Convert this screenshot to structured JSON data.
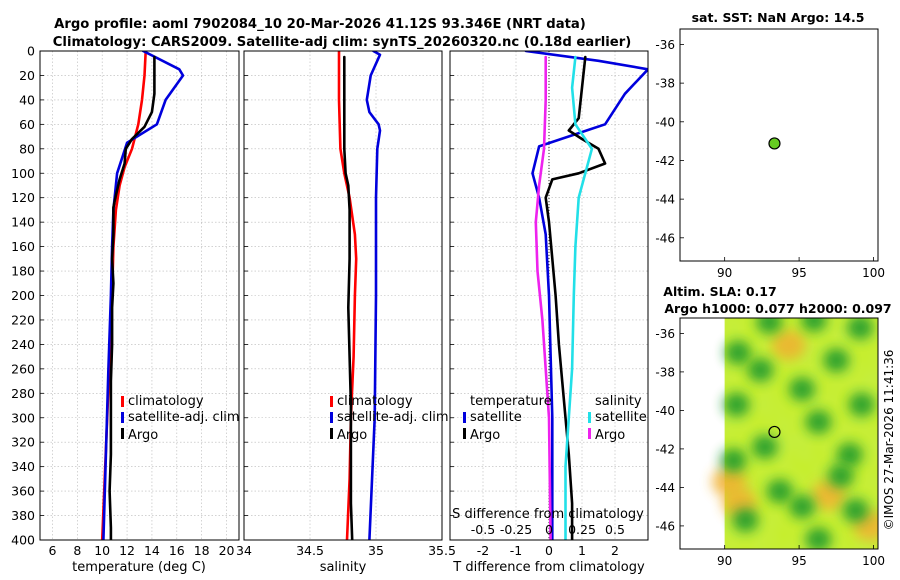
{
  "figure": {
    "title_line1": "Argo profile: aoml 7902084_10 20-Mar-2026 41.12S 93.346E (NRT data)",
    "title_line2": "Climatology: CARS2009. Satellite-adj clim: synTS_20260320.nc (0.18d earlier)",
    "footer": "©IMOS 27-Mar-2026 11:41:36"
  },
  "colors": {
    "climatology": "#ff0000",
    "satellite": "#0000dd",
    "argo": "#000000",
    "salinity_satellite": "#22e0e8",
    "salinity_argo": "#ee22ee",
    "map_marker": "#66cc22"
  },
  "chart_data": [
    {
      "id": "temperature",
      "type": "line",
      "xlabel": "temperature (deg C)",
      "ylabel": "",
      "xlim": [
        5,
        21
      ],
      "ylim": [
        400,
        0
      ],
      "xticks": [
        "6",
        "8",
        "10",
        "12",
        "14",
        "16",
        "18",
        "20"
      ],
      "xtick_values": [
        6,
        8,
        10,
        12,
        14,
        16,
        18,
        20
      ],
      "yticks": [
        "0",
        "20",
        "40",
        "60",
        "80",
        "100",
        "120",
        "140",
        "160",
        "180",
        "200",
        "220",
        "240",
        "260",
        "280",
        "300",
        "320",
        "340",
        "360",
        "380",
        "400"
      ],
      "ytick_values": [
        0,
        20,
        40,
        60,
        80,
        100,
        120,
        140,
        160,
        180,
        200,
        220,
        240,
        260,
        280,
        300,
        320,
        340,
        360,
        380,
        400
      ],
      "grid": true,
      "legend": [
        "climatology",
        "satellite-adj. clim",
        "Argo"
      ],
      "series": [
        {
          "name": "climatology",
          "color": "#ff0000",
          "points": [
            [
              13.5,
              0
            ],
            [
              13.4,
              20
            ],
            [
              13.2,
              40
            ],
            [
              12.9,
              60
            ],
            [
              12.4,
              80
            ],
            [
              11.8,
              95
            ],
            [
              11.4,
              110
            ],
            [
              11.1,
              130
            ],
            [
              10.9,
              160
            ],
            [
              10.8,
              200
            ],
            [
              10.6,
              250
            ],
            [
              10.4,
              300
            ],
            [
              10.2,
              350
            ],
            [
              10.0,
              400
            ]
          ]
        },
        {
          "name": "satellite-adj. clim",
          "color": "#0000dd",
          "points": [
            [
              13.3,
              0
            ],
            [
              16.2,
              15
            ],
            [
              16.5,
              20
            ],
            [
              15.1,
              40
            ],
            [
              14.4,
              60
            ],
            [
              12.0,
              75
            ],
            [
              11.2,
              100
            ],
            [
              10.9,
              130
            ],
            [
              10.8,
              160
            ],
            [
              10.7,
              200
            ],
            [
              10.5,
              260
            ],
            [
              10.3,
              330
            ],
            [
              10.1,
              400
            ]
          ]
        },
        {
          "name": "Argo",
          "color": "#000000",
          "points": [
            [
              14.2,
              5
            ],
            [
              14.2,
              35
            ],
            [
              14.0,
              50
            ],
            [
              13.4,
              62
            ],
            [
              12.4,
              72
            ],
            [
              11.9,
              80
            ],
            [
              11.8,
              92
            ],
            [
              11.4,
              105
            ],
            [
              11.1,
              118
            ],
            [
              10.9,
              128
            ],
            [
              10.9,
              150
            ],
            [
              10.8,
              170
            ],
            [
              10.9,
              190
            ],
            [
              10.8,
              210
            ],
            [
              10.8,
              240
            ],
            [
              10.7,
              270
            ],
            [
              10.7,
              300
            ],
            [
              10.7,
              330
            ],
            [
              10.6,
              360
            ],
            [
              10.7,
              390
            ],
            [
              10.7,
              400
            ]
          ]
        }
      ]
    },
    {
      "id": "salinity",
      "type": "line",
      "xlabel": "salinity",
      "xlim": [
        34,
        35.5
      ],
      "ylim": [
        400,
        0
      ],
      "xticks": [
        "34",
        "34.5",
        "35",
        "35.5"
      ],
      "xtick_values": [
        34,
        34.5,
        35,
        35.5
      ],
      "grid": true,
      "legend": [
        "climatology",
        "satellite-adj. clim",
        "Argo"
      ],
      "series": [
        {
          "name": "climatology",
          "color": "#ff0000",
          "points": [
            [
              34.72,
              0
            ],
            [
              34.72,
              40
            ],
            [
              34.73,
              80
            ],
            [
              34.76,
              100
            ],
            [
              34.8,
              120
            ],
            [
              34.84,
              150
            ],
            [
              34.85,
              170
            ],
            [
              34.84,
              200
            ],
            [
              34.83,
              250
            ],
            [
              34.81,
              300
            ],
            [
              34.8,
              350
            ],
            [
              34.78,
              400
            ]
          ]
        },
        {
          "name": "satellite-adj. clim",
          "color": "#0000dd",
          "points": [
            [
              34.98,
              0
            ],
            [
              35.03,
              3
            ],
            [
              34.96,
              20
            ],
            [
              34.93,
              40
            ],
            [
              34.95,
              50
            ],
            [
              35.02,
              60
            ],
            [
              35.03,
              65
            ],
            [
              35.01,
              80
            ],
            [
              35.0,
              120
            ],
            [
              35.0,
              200
            ],
            [
              34.99,
              300
            ],
            [
              34.95,
              400
            ]
          ]
        },
        {
          "name": "Argo",
          "color": "#000000",
          "points": [
            [
              34.76,
              5
            ],
            [
              34.76,
              60
            ],
            [
              34.76,
              80
            ],
            [
              34.77,
              100
            ],
            [
              34.79,
              110
            ],
            [
              34.8,
              130
            ],
            [
              34.8,
              170
            ],
            [
              34.79,
              210
            ],
            [
              34.8,
              250
            ],
            [
              34.81,
              290
            ],
            [
              34.81,
              330
            ],
            [
              34.81,
              370
            ],
            [
              34.82,
              400
            ]
          ]
        }
      ]
    },
    {
      "id": "difference",
      "type": "line",
      "xlabel": "T difference from climatology",
      "xlabel_top": "S difference from climatology",
      "xlim": [
        -3,
        3
      ],
      "ylim": [
        400,
        0
      ],
      "xticks": [
        "-2",
        "-1",
        "0",
        "1",
        "2"
      ],
      "xtick_values": [
        -2,
        -1,
        0,
        1,
        2
      ],
      "s_ticks": [
        "-0.5",
        "-0.25",
        "0",
        "0.25",
        "0.5"
      ],
      "s_tick_values": [
        -0.5,
        -0.25,
        0,
        0.25,
        0.5
      ],
      "grid": true,
      "legend_titles": [
        "temperature",
        "salinity"
      ],
      "legend": [
        "satellite",
        "Argo",
        "satellite",
        "Argo"
      ],
      "series": [
        {
          "name": "T satellite",
          "color": "#0000dd",
          "points": [
            [
              -0.7,
              0
            ],
            [
              1.5,
              8
            ],
            [
              3.0,
              15
            ],
            [
              2.3,
              35
            ],
            [
              1.7,
              60
            ],
            [
              -0.3,
              78
            ],
            [
              -0.5,
              100
            ],
            [
              -0.3,
              120
            ],
            [
              -0.1,
              150
            ],
            [
              0.0,
              200
            ],
            [
              0.1,
              300
            ],
            [
              0.1,
              400
            ]
          ]
        },
        {
          "name": "T Argo",
          "color": "#000000",
          "points": [
            [
              1.1,
              5
            ],
            [
              1.0,
              30
            ],
            [
              0.9,
              55
            ],
            [
              0.6,
              65
            ],
            [
              1.0,
              72
            ],
            [
              1.5,
              80
            ],
            [
              1.7,
              92
            ],
            [
              0.9,
              100
            ],
            [
              0.1,
              105
            ],
            [
              -0.1,
              120
            ],
            [
              0.0,
              140
            ],
            [
              0.1,
              170
            ],
            [
              0.2,
              200
            ],
            [
              0.3,
              240
            ],
            [
              0.4,
              270
            ],
            [
              0.5,
              300
            ],
            [
              0.6,
              330
            ],
            [
              0.7,
              370
            ],
            [
              0.7,
              400
            ]
          ]
        },
        {
          "name": "S satellite",
          "color": "#22e0e8",
          "points": [
            [
              0.8,
              5
            ],
            [
              0.7,
              30
            ],
            [
              0.8,
              60
            ],
            [
              1.3,
              80
            ],
            [
              0.9,
              120
            ],
            [
              0.8,
              160
            ],
            [
              0.75,
              200
            ],
            [
              0.7,
              260
            ],
            [
              0.6,
              300
            ],
            [
              0.5,
              340
            ],
            [
              0.5,
              400
            ]
          ]
        },
        {
          "name": "S Argo",
          "color": "#ee22ee",
          "points": [
            [
              -0.1,
              5
            ],
            [
              -0.1,
              40
            ],
            [
              -0.15,
              80
            ],
            [
              -0.3,
              110
            ],
            [
              -0.4,
              140
            ],
            [
              -0.35,
              180
            ],
            [
              -0.2,
              220
            ],
            [
              -0.1,
              260
            ],
            [
              0.0,
              300
            ],
            [
              0.05,
              400
            ]
          ]
        }
      ]
    },
    {
      "id": "sst_map",
      "type": "scatter",
      "title": "sat. SST: NaN Argo: 14.5",
      "xlim": [
        87,
        100.3
      ],
      "ylim": [
        -47.2,
        -35.2
      ],
      "xticks": [
        "90",
        "95",
        "100"
      ],
      "xtick_values": [
        90,
        95,
        100
      ],
      "yticks": [
        "-36",
        "-38",
        "-40",
        "-42",
        "-44",
        "-46"
      ],
      "ytick_values": [
        -36,
        -38,
        -40,
        -42,
        -44,
        -46
      ],
      "points": [
        {
          "lon": 93.346,
          "lat": -41.12
        }
      ]
    },
    {
      "id": "sla_map",
      "type": "heatmap",
      "title_line1": "Altim. SLA: 0.17",
      "title_line2": "Argo h1000: 0.077 h2000: 0.097",
      "xlim": [
        87,
        100.3
      ],
      "ylim": [
        -47.2,
        -35.2
      ],
      "data_lon_range": [
        90,
        100
      ],
      "xticks": [
        "90",
        "95",
        "100"
      ],
      "xtick_values": [
        90,
        95,
        100
      ],
      "yticks": [
        "-36",
        "-38",
        "-40",
        "-42",
        "-44",
        "-46"
      ],
      "ytick_values": [
        -36,
        -38,
        -40,
        -42,
        -44,
        -46
      ],
      "points": [
        {
          "lon": 93.346,
          "lat": -41.12
        }
      ],
      "eddies_high": [
        [
          93.0,
          -35.4
        ],
        [
          96.0,
          -35.3
        ],
        [
          90.9,
          -37.0
        ],
        [
          99.1,
          -35.7
        ],
        [
          92.4,
          -37.9
        ],
        [
          97.5,
          -37.4
        ],
        [
          95.2,
          -38.9
        ],
        [
          90.8,
          -39.7
        ],
        [
          99.2,
          -39.7
        ],
        [
          96.3,
          -40.6
        ],
        [
          92.7,
          -41.9
        ],
        [
          90.6,
          -42.6
        ],
        [
          98.4,
          -42.3
        ],
        [
          93.7,
          -44.2
        ],
        [
          97.8,
          -43.4
        ],
        [
          95.2,
          -45.0
        ],
        [
          91.4,
          -45.7
        ],
        [
          98.8,
          -45.2
        ],
        [
          96.3,
          -46.7
        ]
      ],
      "eddies_low": [
        [
          90.3,
          -43.7
        ],
        [
          91.0,
          -44.8
        ],
        [
          97.0,
          -44.4
        ],
        [
          99.8,
          -46.0
        ],
        [
          94.3,
          -36.6
        ]
      ]
    }
  ]
}
